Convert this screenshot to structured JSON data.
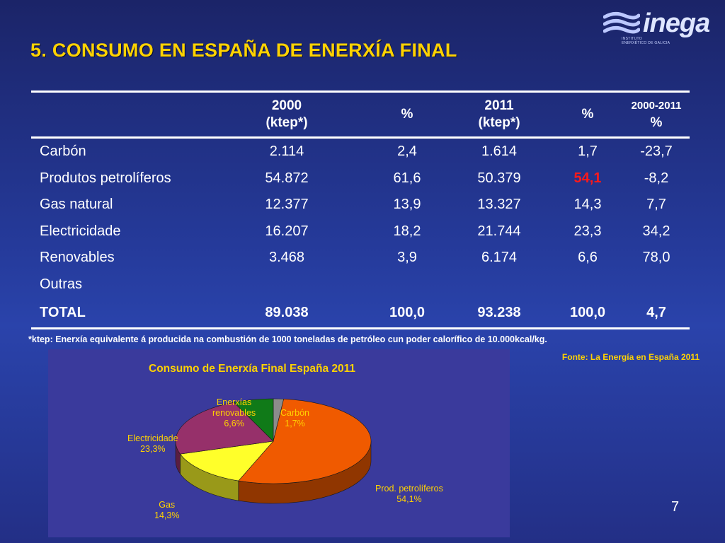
{
  "slide": {
    "title": "5. CONSUMO EN ESPAÑA DE  ENERXÍA FINAL",
    "page_number": "7"
  },
  "logo": {
    "brand": "inega",
    "subtitle_line1": "INSTITUTO",
    "subtitle_line2": "ENERXÉTICO DE GALICIA"
  },
  "table": {
    "headers": [
      {
        "line1": "",
        "line2": ""
      },
      {
        "line1": "2000",
        "line2": "(ktep*)"
      },
      {
        "line1": "%",
        "line2": ""
      },
      {
        "line1": "2011",
        "line2": "(ktep*)"
      },
      {
        "line1": "%",
        "line2": ""
      },
      {
        "line1": "2000-2011",
        "line2": "%"
      }
    ],
    "rows": [
      {
        "label": "Carbón",
        "v2000": "2.114",
        "p2000": "2,4",
        "v2011": "1.614",
        "p2011": "1,7",
        "change": "-23,7"
      },
      {
        "label": "Produtos petrolíferos",
        "v2000": "54.872",
        "p2000": "61,6",
        "v2011": "50.379",
        "p2011": "54,1",
        "change": "-8,2"
      },
      {
        "label": "Gas natural",
        "v2000": "12.377",
        "p2000": "13,9",
        "v2011": "13.327",
        "p2011": "14,3",
        "change": "7,7"
      },
      {
        "label": "Electricidade",
        "v2000": "16.207",
        "p2000": "18,2",
        "v2011": "21.744",
        "p2011": "23,3",
        "change": "34,2"
      },
      {
        "label": "Renovables",
        "v2000": "3.468",
        "p2000": "3,9",
        "v2011": "6.174",
        "p2011": "6,6",
        "change": "78,0"
      },
      {
        "label": "Outras",
        "v2000": "",
        "p2000": "",
        "v2011": "",
        "p2011": "",
        "change": ""
      }
    ],
    "total": {
      "label": "TOTAL",
      "v2000": "89.038",
      "p2000": "100,0",
      "v2011": "93.238",
      "p2011": "100,0",
      "change": "4,7"
    },
    "highlight_color": "#ff1a1a"
  },
  "footnote": "*ktep: Enerxía equivalente á producida na combustión de 1000 toneladas de petróleo cun poder calorífico de 10.000kcal/kg.",
  "source": "Fonte: La Energía  en España 2011",
  "chart_data": {
    "type": "pie",
    "title": "Consumo de Enerxía Final España 2011",
    "slices": [
      {
        "name": "Carbón",
        "value": 1.7,
        "label_lines": [
          "Carbón",
          "1,7%"
        ],
        "color": "#8c8c8c"
      },
      {
        "name": "Prod. petrolíferos",
        "value": 54.1,
        "label_lines": [
          "Prod. petrolíferos",
          "54,1%"
        ],
        "color": "#f05a00"
      },
      {
        "name": "Gas",
        "value": 14.3,
        "label_lines": [
          "Gas",
          "14,3%"
        ],
        "color": "#ffff2a"
      },
      {
        "name": "Electricidade",
        "value": 23.3,
        "label_lines": [
          "Electricidade",
          "23,3%"
        ],
        "color": "#96306a"
      },
      {
        "name": "Enerxías renovables",
        "value": 6.6,
        "label_lines": [
          "Enerxías",
          "renovables",
          "6,6%"
        ],
        "color": "#107a18"
      }
    ],
    "three_d": true
  }
}
